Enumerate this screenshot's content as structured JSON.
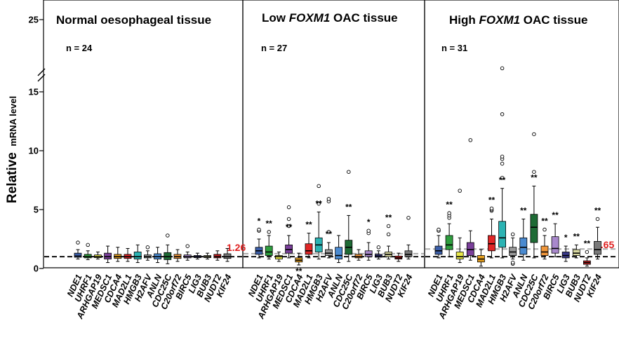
{
  "chart_data": {
    "type": "box",
    "ylabel": "Relative mRNA level",
    "ylabel_main": "Relative",
    "ylabel_sub": "mRNA level",
    "y_ticks": [
      0,
      5,
      10,
      15,
      25
    ],
    "y_axis_break": "between 15 and 25",
    "reference_line": {
      "value": 1.0,
      "style": "black dashed"
    },
    "genes": [
      "NDE1",
      "UHRF1",
      "ARHGAP19",
      "MEDSC1",
      "CDCA4",
      "MAD2L1",
      "HMGB3",
      "H2AFV",
      "ANLN",
      "CDC25C",
      "C20orf72",
      "BIRC5",
      "LIG3",
      "BUB3",
      "NUDT2",
      "KIF24"
    ],
    "colors": [
      "#3b5ea8",
      "#2e9e3e",
      "#e8e84a",
      "#7a3f9a",
      "#e6a020",
      "#e02626",
      "#2bb3b3",
      "#9a9a9a",
      "#4a8ad0",
      "#1e6b35",
      "#f0963a",
      "#a888cc",
      "#3a3a8a",
      "#d8d8a0",
      "#c02020",
      "#7a7a7a"
    ],
    "panels": [
      {
        "title_pre": "Normal oesophageal tissue",
        "title_ital": "",
        "title_post": "",
        "n": "n = 24",
        "mean_label": "1.26",
        "mean_value": 1.26,
        "boxes": [
          {
            "gene": "NDE1",
            "min": 0.8,
            "q1": 0.95,
            "median": 1.05,
            "q3": 1.3,
            "max": 1.6,
            "outliers": [
              2.2
            ],
            "sig": ""
          },
          {
            "gene": "UHRF1",
            "min": 0.75,
            "q1": 0.9,
            "median": 1.0,
            "q3": 1.2,
            "max": 1.5,
            "outliers": [
              2.0
            ],
            "sig": ""
          },
          {
            "gene": "ARHGAP19",
            "min": 0.8,
            "q1": 0.92,
            "median": 1.0,
            "q3": 1.15,
            "max": 1.4,
            "outliers": [],
            "sig": ""
          },
          {
            "gene": "MEDSC1",
            "min": 0.5,
            "q1": 0.8,
            "median": 1.0,
            "q3": 1.3,
            "max": 1.9,
            "outliers": [],
            "sig": ""
          },
          {
            "gene": "CDCA4",
            "min": 0.6,
            "q1": 0.85,
            "median": 1.0,
            "q3": 1.2,
            "max": 1.8,
            "outliers": [],
            "sig": ""
          },
          {
            "gene": "MAD2L1",
            "min": 0.6,
            "q1": 0.85,
            "median": 1.0,
            "q3": 1.2,
            "max": 1.7,
            "outliers": [],
            "sig": ""
          },
          {
            "gene": "HMGB3",
            "min": 0.5,
            "q1": 0.8,
            "median": 1.0,
            "q3": 1.4,
            "max": 2.0,
            "outliers": [],
            "sig": ""
          },
          {
            "gene": "H2AFV",
            "min": 0.7,
            "q1": 0.9,
            "median": 1.0,
            "q3": 1.15,
            "max": 1.5,
            "outliers": [
              1.8
            ],
            "sig": ""
          },
          {
            "gene": "ANLN",
            "min": 0.5,
            "q1": 0.8,
            "median": 1.0,
            "q3": 1.25,
            "max": 1.8,
            "outliers": [],
            "sig": ""
          },
          {
            "gene": "CDC25C",
            "min": 0.4,
            "q1": 0.75,
            "median": 1.0,
            "q3": 1.35,
            "max": 2.0,
            "outliers": [
              2.8
            ],
            "sig": ""
          },
          {
            "gene": "C20orf72",
            "min": 0.6,
            "q1": 0.85,
            "median": 1.0,
            "q3": 1.2,
            "max": 1.6,
            "outliers": [],
            "sig": ""
          },
          {
            "gene": "BIRC5",
            "min": 0.7,
            "q1": 0.9,
            "median": 1.0,
            "q3": 1.15,
            "max": 1.4,
            "outliers": [
              1.9
            ],
            "sig": ""
          },
          {
            "gene": "LIG3",
            "min": 0.8,
            "q1": 0.92,
            "median": 1.0,
            "q3": 1.1,
            "max": 1.3,
            "outliers": [],
            "sig": ""
          },
          {
            "gene": "BUB3",
            "min": 0.8,
            "q1": 0.92,
            "median": 1.0,
            "q3": 1.1,
            "max": 1.3,
            "outliers": [],
            "sig": ""
          },
          {
            "gene": "NUDT2",
            "min": 0.7,
            "q1": 0.9,
            "median": 1.0,
            "q3": 1.2,
            "max": 1.5,
            "outliers": [],
            "sig": ""
          },
          {
            "gene": "KIF24",
            "min": 0.6,
            "q1": 0.85,
            "median": 1.0,
            "q3": 1.25,
            "max": 1.7,
            "outliers": [],
            "sig": ""
          }
        ]
      },
      {
        "title_pre": "Low ",
        "title_ital": "FOXM1",
        "title_post": " OAC tissue",
        "n": "n = 27",
        "mean_label": "",
        "mean_value": 1.26,
        "boxes": [
          {
            "gene": "NDE1",
            "min": 0.9,
            "q1": 1.2,
            "median": 1.5,
            "q3": 1.8,
            "max": 2.5,
            "outliers": [
              3.2,
              3.3
            ],
            "sig": "*"
          },
          {
            "gene": "UHRF1",
            "min": 0.8,
            "q1": 1.1,
            "median": 1.4,
            "q3": 1.9,
            "max": 2.8,
            "outliers": [
              3.1
            ],
            "sig": "**"
          },
          {
            "gene": "ARHGAP19",
            "min": 0.6,
            "q1": 0.8,
            "median": 1.0,
            "q3": 1.1,
            "max": 1.4,
            "outliers": [],
            "sig": ""
          },
          {
            "gene": "MEDSC1",
            "min": 0.9,
            "q1": 1.3,
            "median": 1.6,
            "q3": 2.0,
            "max": 2.8,
            "outliers": [
              3.6,
              4.2,
              5.2
            ],
            "sig": "**"
          },
          {
            "gene": "CDCA4",
            "min": 0.3,
            "q1": 0.55,
            "median": 0.7,
            "q3": 0.9,
            "max": 1.3,
            "outliers": [],
            "sig": "**"
          },
          {
            "gene": "MAD2L1",
            "min": 0.9,
            "q1": 1.2,
            "median": 1.5,
            "q3": 2.1,
            "max": 3.0,
            "outliers": [],
            "sig": "**"
          },
          {
            "gene": "HMGB3",
            "min": 0.8,
            "q1": 1.4,
            "median": 2.0,
            "q3": 2.6,
            "max": 4.8,
            "outliers": [
              5.5,
              7.0
            ],
            "sig": "**"
          },
          {
            "gene": "H2AFV",
            "min": 0.9,
            "q1": 1.1,
            "median": 1.3,
            "q3": 1.6,
            "max": 2.2,
            "outliers": [
              3.1,
              5.7,
              5.9
            ],
            "sig": "**"
          },
          {
            "gene": "ANLN",
            "min": 0.5,
            "q1": 0.8,
            "median": 1.1,
            "q3": 1.8,
            "max": 2.8,
            "outliers": [],
            "sig": ""
          },
          {
            "gene": "CDC25C",
            "min": 0.6,
            "q1": 1.2,
            "median": 1.8,
            "q3": 2.4,
            "max": 4.5,
            "outliers": [
              8.2
            ],
            "sig": "**"
          },
          {
            "gene": "C20orf72",
            "min": 0.7,
            "q1": 0.9,
            "median": 1.0,
            "q3": 1.2,
            "max": 1.6,
            "outliers": [],
            "sig": ""
          },
          {
            "gene": "BIRC5",
            "min": 0.7,
            "q1": 1.0,
            "median": 1.2,
            "q3": 1.5,
            "max": 2.2,
            "outliers": [
              3.0,
              3.2
            ],
            "sig": "*"
          },
          {
            "gene": "LIG3",
            "min": 0.8,
            "q1": 0.95,
            "median": 1.05,
            "q3": 1.2,
            "max": 1.5,
            "outliers": [
              1.8
            ],
            "sig": ""
          },
          {
            "gene": "BUB3",
            "min": 0.8,
            "q1": 1.0,
            "median": 1.2,
            "q3": 1.4,
            "max": 1.9,
            "outliers": [
              2.9,
              3.6
            ],
            "sig": "**"
          },
          {
            "gene": "NUDT2",
            "min": 0.6,
            "q1": 0.8,
            "median": 0.9,
            "q3": 1.05,
            "max": 1.3,
            "outliers": [],
            "sig": ""
          },
          {
            "gene": "KIF24",
            "min": 0.8,
            "q1": 1.0,
            "median": 1.2,
            "q3": 1.5,
            "max": 2.0,
            "outliers": [
              4.3
            ],
            "sig": ""
          }
        ]
      },
      {
        "title_pre": "High ",
        "title_ital": "FOXM1",
        "title_post": " OAC tissue",
        "n": "n = 31",
        "mean_label": "1.65",
        "mean_value": 1.65,
        "boxes": [
          {
            "gene": "NDE1",
            "min": 0.9,
            "q1": 1.2,
            "median": 1.5,
            "q3": 1.9,
            "max": 2.8,
            "outliers": [
              3.2,
              3.3
            ],
            "sig": ""
          },
          {
            "gene": "UHRF1",
            "min": 1.0,
            "q1": 1.6,
            "median": 2.0,
            "q3": 2.8,
            "max": 3.8,
            "outliers": [
              4.3,
              4.5,
              4.7
            ],
            "sig": "**"
          },
          {
            "gene": "ARHGAP19",
            "min": 0.5,
            "q1": 0.8,
            "median": 1.0,
            "q3": 1.4,
            "max": 2.6,
            "outliers": [
              6.6
            ],
            "sig": ""
          },
          {
            "gene": "MEDSC1",
            "min": 0.7,
            "q1": 1.1,
            "median": 1.6,
            "q3": 2.2,
            "max": 3.2,
            "outliers": [
              10.9
            ],
            "sig": ""
          },
          {
            "gene": "CDCA4",
            "min": 0.2,
            "q1": 0.55,
            "median": 0.8,
            "q3": 1.1,
            "max": 1.6,
            "outliers": [],
            "sig": ""
          },
          {
            "gene": "MAD2L1",
            "min": 0.9,
            "q1": 1.5,
            "median": 2.1,
            "q3": 2.8,
            "max": 4.2,
            "outliers": [
              4.9,
              5.0,
              5.1
            ],
            "sig": "**"
          },
          {
            "gene": "HMGB3",
            "min": 0.9,
            "q1": 1.8,
            "median": 2.6,
            "q3": 4.0,
            "max": 6.8,
            "outliers": [
              7.7,
              8.9,
              9.3,
              9.5,
              13.1,
              17.0
            ],
            "sig": "**"
          },
          {
            "gene": "H2AFV",
            "min": 0.8,
            "q1": 1.1,
            "median": 1.4,
            "q3": 1.8,
            "max": 2.6,
            "outliers": [
              0.4,
              0.5,
              2.9
            ],
            "sig": ""
          },
          {
            "gene": "ANLN",
            "min": 0.7,
            "q1": 1.2,
            "median": 1.8,
            "q3": 2.6,
            "max": 4.2,
            "outliers": [],
            "sig": "**"
          },
          {
            "gene": "CDC25C",
            "min": 0.9,
            "q1": 2.2,
            "median": 3.5,
            "q3": 4.6,
            "max": 7.0,
            "outliers": [
              8.2,
              11.4
            ],
            "sig": "**"
          },
          {
            "gene": "C20orf72",
            "min": 0.8,
            "q1": 1.1,
            "median": 1.4,
            "q3": 1.9,
            "max": 2.8,
            "outliers": [
              3.3
            ],
            "sig": "**"
          },
          {
            "gene": "BIRC5",
            "min": 1.0,
            "q1": 1.3,
            "median": 1.7,
            "q3": 2.7,
            "max": 3.8,
            "outliers": [],
            "sig": "**"
          },
          {
            "gene": "LIG3",
            "min": 0.6,
            "q1": 0.9,
            "median": 1.1,
            "q3": 1.4,
            "max": 1.9,
            "outliers": [],
            "sig": "*"
          },
          {
            "gene": "BUB3",
            "min": 0.9,
            "q1": 1.1,
            "median": 1.3,
            "q3": 1.6,
            "max": 2.0,
            "outliers": [],
            "sig": "**"
          },
          {
            "gene": "NUDT2",
            "min": 0.2,
            "q1": 0.35,
            "median": 0.5,
            "q3": 0.65,
            "max": 0.9,
            "outliers": [
              1.4
            ],
            "sig": "**"
          },
          {
            "gene": "KIF24",
            "min": 0.8,
            "q1": 1.2,
            "median": 1.6,
            "q3": 2.3,
            "max": 3.5,
            "outliers": [
              4.2
            ],
            "sig": "**"
          }
        ]
      }
    ]
  }
}
